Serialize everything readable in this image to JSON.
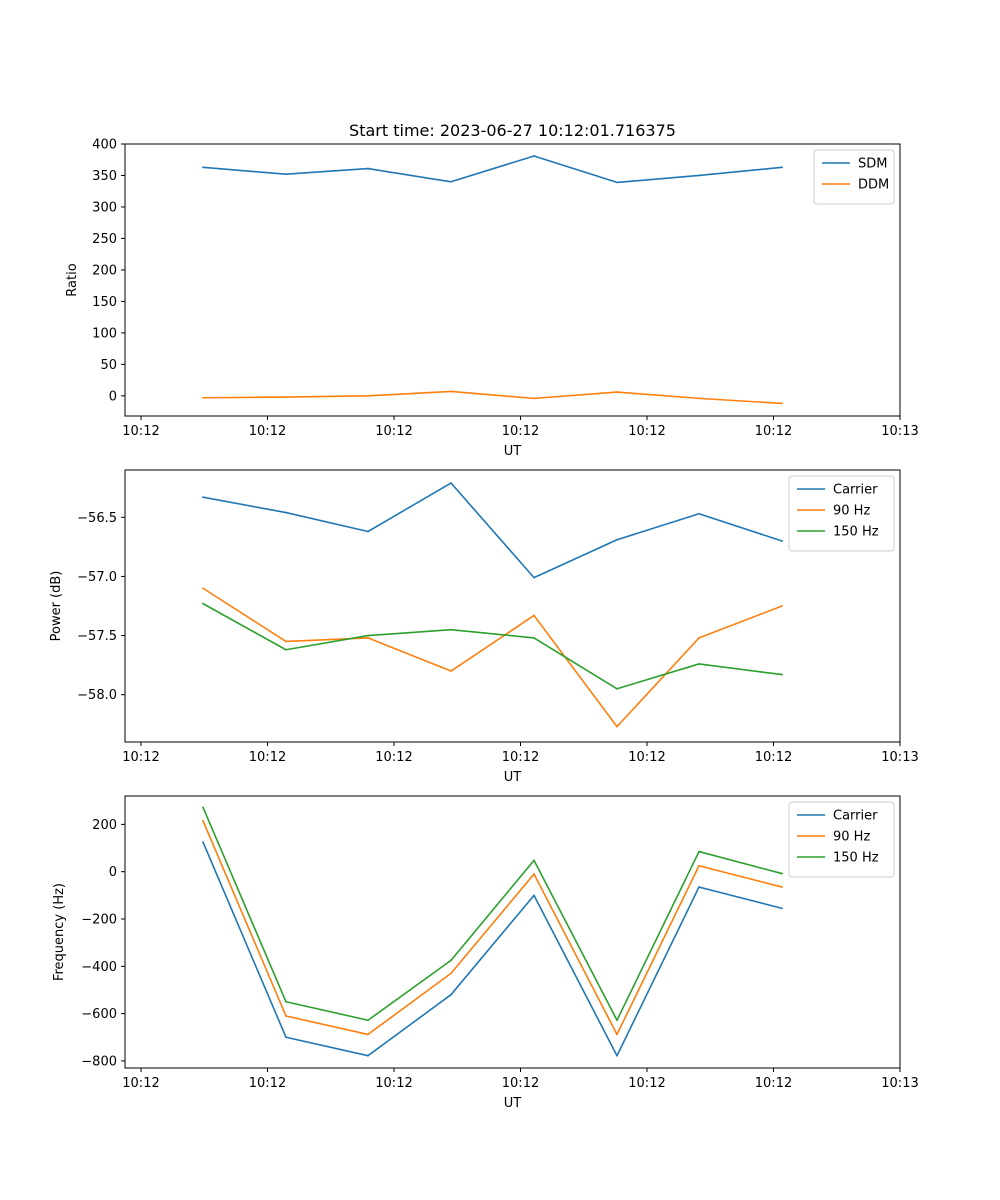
{
  "figure_title": "Start time: 2023-06-27 10:12:01.716375",
  "colors": {
    "blue": "#1f77b4",
    "orange": "#ff7f0e",
    "green": "#2ca02c"
  },
  "chart_data": [
    {
      "type": "line",
      "title": "Start time: 2023-06-27 10:12:01.716375",
      "xlabel": "UT",
      "ylabel": "Ratio",
      "x_tick_labels": [
        "10:12",
        "10:12",
        "10:12",
        "10:12",
        "10:12",
        "10:12",
        "10:13"
      ],
      "y_ticks": [
        0,
        50,
        100,
        150,
        200,
        250,
        300,
        350,
        400
      ],
      "y_tick_labels": [
        "0",
        "50",
        "100",
        "150",
        "200",
        "250",
        "300",
        "350",
        "400"
      ],
      "ylim": [
        -32,
        400
      ],
      "legend_position": "top-right",
      "series": [
        {
          "name": "SDM",
          "color": "#1f77b4",
          "values": [
            363,
            352,
            361,
            340,
            381,
            339,
            350,
            363
          ]
        },
        {
          "name": "DDM",
          "color": "#ff7f0e",
          "values": [
            -3,
            -2,
            0,
            7,
            -4,
            6,
            -4,
            -12
          ]
        }
      ]
    },
    {
      "type": "line",
      "title": "",
      "xlabel": "UT",
      "ylabel": "Power (dB)",
      "x_tick_labels": [
        "10:12",
        "10:12",
        "10:12",
        "10:12",
        "10:12",
        "10:12",
        "10:13"
      ],
      "y_ticks": [
        -58.0,
        -57.5,
        -57.0,
        -56.5
      ],
      "y_tick_labels": [
        "−58.0",
        "−57.5",
        "−57.0",
        "−56.5"
      ],
      "ylim": [
        -58.4,
        -56.1
      ],
      "legend_position": "top-right",
      "series": [
        {
          "name": "Carrier",
          "color": "#1f77b4",
          "values": [
            -56.33,
            -56.46,
            -56.62,
            -56.21,
            -57.01,
            -56.69,
            -56.47,
            -56.7
          ]
        },
        {
          "name": "90 Hz",
          "color": "#ff7f0e",
          "values": [
            -57.1,
            -57.55,
            -57.52,
            -57.8,
            -57.33,
            -58.27,
            -57.52,
            -57.25
          ]
        },
        {
          "name": "150 Hz",
          "color": "#2ca02c",
          "values": [
            -57.23,
            -57.62,
            -57.5,
            -57.45,
            -57.52,
            -57.95,
            -57.74,
            -57.83
          ]
        }
      ]
    },
    {
      "type": "line",
      "title": "",
      "xlabel": "UT",
      "ylabel": "Frequency (Hz)",
      "x_tick_labels": [
        "10:12",
        "10:12",
        "10:12",
        "10:12",
        "10:12",
        "10:12",
        "10:13"
      ],
      "y_ticks": [
        -800,
        -600,
        -400,
        -200,
        0,
        200
      ],
      "y_tick_labels": [
        "−800",
        "−600",
        "−400",
        "−200",
        "0",
        "200"
      ],
      "ylim": [
        -830,
        320
      ],
      "legend_position": "top-right",
      "series": [
        {
          "name": "Carrier",
          "color": "#1f77b4",
          "values": [
            125,
            -700,
            -778,
            -520,
            -100,
            -778,
            -65,
            -155
          ]
        },
        {
          "name": "90 Hz",
          "color": "#ff7f0e",
          "values": [
            215,
            -610,
            -688,
            -430,
            -10,
            -688,
            25,
            -65
          ]
        },
        {
          "name": "150 Hz",
          "color": "#2ca02c",
          "values": [
            272,
            -550,
            -628,
            -375,
            48,
            -628,
            85,
            -8
          ]
        }
      ]
    }
  ]
}
